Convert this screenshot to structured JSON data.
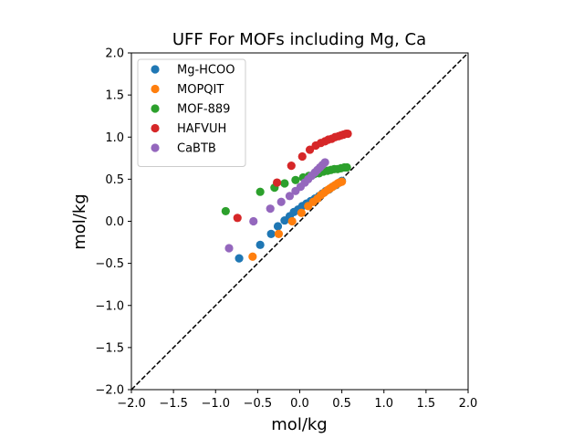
{
  "chart_data": {
    "type": "scatter",
    "title": "UFF For MOFs including Mg, Ca",
    "xlabel": "mol/kg",
    "ylabel": "mol/kg",
    "xlim": [
      -2.0,
      2.0
    ],
    "ylim": [
      -2.0,
      2.0
    ],
    "xticks": [
      "−2.0",
      "−1.5",
      "−1.0",
      "−0.5",
      "0.0",
      "0.5",
      "1.0",
      "1.5",
      "2.0"
    ],
    "yticks": [
      "−2.0",
      "−1.5",
      "−1.0",
      "−0.5",
      "0.0",
      "0.5",
      "1.0",
      "1.5",
      "2.0"
    ],
    "grid": false,
    "legend_position": "top-left",
    "reference_line": {
      "style": "dashed",
      "color": "#000000",
      "from": [
        -2.0,
        -2.0
      ],
      "to": [
        2.0,
        2.0
      ]
    },
    "series": [
      {
        "name": "Mg-HCOO",
        "color": "#1f77b4",
        "x": [
          -0.72,
          -0.47,
          -0.34,
          -0.26,
          -0.18,
          -0.12,
          -0.07,
          -0.02,
          0.03,
          0.08,
          0.13,
          0.18,
          0.23,
          0.27,
          0.31,
          0.35,
          0.39,
          0.43,
          0.47,
          0.5
        ],
        "y": [
          -0.44,
          -0.28,
          -0.15,
          -0.06,
          0.01,
          0.06,
          0.11,
          0.14,
          0.18,
          0.21,
          0.24,
          0.27,
          0.3,
          0.33,
          0.36,
          0.38,
          0.41,
          0.43,
          0.46,
          0.48
        ]
      },
      {
        "name": "MOPQIT",
        "color": "#ff7f0e",
        "x": [
          -0.56,
          -0.25,
          -0.09,
          0.02,
          0.1,
          0.16,
          0.21,
          0.25,
          0.29,
          0.33,
          0.36,
          0.39,
          0.42,
          0.45,
          0.47,
          0.5
        ],
        "y": [
          -0.42,
          -0.15,
          0.0,
          0.1,
          0.18,
          0.23,
          0.27,
          0.31,
          0.34,
          0.37,
          0.39,
          0.41,
          0.43,
          0.45,
          0.46,
          0.47
        ]
      },
      {
        "name": "MOF-889",
        "color": "#2ca02c",
        "x": [
          -0.88,
          -0.47,
          -0.3,
          -0.18,
          -0.05,
          0.04,
          0.11,
          0.17,
          0.23,
          0.28,
          0.33,
          0.37,
          0.41,
          0.45,
          0.49,
          0.53,
          0.56
        ],
        "y": [
          0.12,
          0.35,
          0.4,
          0.45,
          0.49,
          0.52,
          0.54,
          0.56,
          0.57,
          0.59,
          0.6,
          0.61,
          0.62,
          0.62,
          0.63,
          0.64,
          0.64
        ]
      },
      {
        "name": "HAFVUH",
        "color": "#d62728",
        "x": [
          -0.74,
          -0.27,
          -0.1,
          0.03,
          0.12,
          0.19,
          0.25,
          0.3,
          0.34,
          0.38,
          0.42,
          0.46,
          0.49,
          0.52,
          0.55,
          0.57
        ],
        "y": [
          0.04,
          0.46,
          0.66,
          0.77,
          0.85,
          0.9,
          0.93,
          0.95,
          0.97,
          0.98,
          1.0,
          1.01,
          1.02,
          1.03,
          1.04,
          1.04
        ]
      },
      {
        "name": "CaBTB",
        "color": "#9467bd",
        "x": [
          -0.84,
          -0.55,
          -0.35,
          -0.22,
          -0.12,
          -0.05,
          0.01,
          0.06,
          0.1,
          0.14,
          0.18,
          0.21,
          0.24,
          0.27,
          0.3
        ],
        "y": [
          -0.32,
          0.0,
          0.15,
          0.23,
          0.3,
          0.36,
          0.41,
          0.46,
          0.5,
          0.54,
          0.58,
          0.61,
          0.64,
          0.67,
          0.7
        ]
      }
    ]
  }
}
